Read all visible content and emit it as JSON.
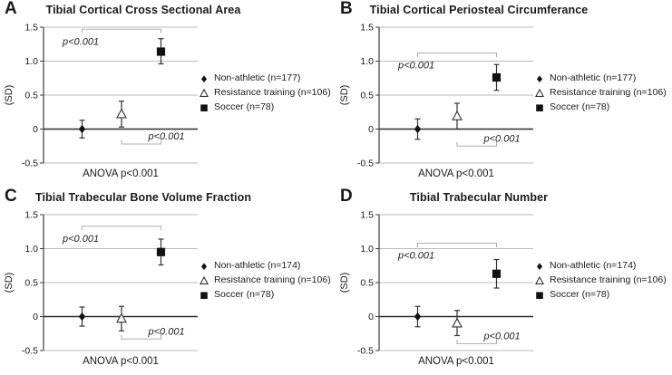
{
  "figure": {
    "ylabel": "(SD)",
    "colors": {
      "background": "#ffffff",
      "grid": "#bababa",
      "zero_line": "#2b2b2b",
      "axis": "#3c3c3c",
      "error_bar": "#333333",
      "bracket": "#b0b0b0",
      "marker": "#111111",
      "text": "#1a1a1a"
    }
  },
  "chart_data": [
    {
      "type": "scatter",
      "panel": "A",
      "title": "Tibial Cortical Cross Sectional Area",
      "ylabel": "(SD)",
      "xlabel": "",
      "anova": "ANOVA p<0.001",
      "ylim": [
        -0.5,
        1.5
      ],
      "grid": true,
      "legend_position": "right",
      "yticks": [
        {
          "value": 1.5,
          "label": "1.5"
        },
        {
          "value": 1.0,
          "label": "1.0"
        },
        {
          "value": 0.5,
          "label": "0.5"
        },
        {
          "value": 0.0,
          "label": "0"
        },
        {
          "value": -0.5,
          "label": "-0.5"
        }
      ],
      "groups": [
        {
          "name": "Non-athletic (n=177)",
          "marker": "diamond",
          "filled": true,
          "mean": 0.0,
          "err_lo": -0.13,
          "err_hi": 0.13
        },
        {
          "name": "Resistance training (n=106)",
          "marker": "triangle-open",
          "filled": false,
          "mean": 0.22,
          "err_lo": 0.03,
          "err_hi": 0.41
        },
        {
          "name": "Soccer (n=78)",
          "marker": "square",
          "filled": true,
          "mean": 1.14,
          "err_lo": 0.96,
          "err_hi": 1.33
        }
      ],
      "comparisons": [
        {
          "from": 0,
          "to": 2,
          "bracket_y": 1.47,
          "label": "p<0.001",
          "label_pos": "below-left",
          "tick_dir": "down"
        },
        {
          "from": 1,
          "to": 2,
          "bracket_y": -0.22,
          "label": "p<0.001",
          "label_pos": "above-right",
          "tick_dir": "up"
        }
      ]
    },
    {
      "type": "scatter",
      "panel": "B",
      "title": "Tibial Cortical Periosteal Circumferance",
      "ylabel": "(SD)",
      "xlabel": "",
      "anova": "ANOVA p<0.001",
      "ylim": [
        -0.5,
        1.5
      ],
      "grid": true,
      "legend_position": "right",
      "yticks": [
        {
          "value": 1.5,
          "label": "1.5"
        },
        {
          "value": 1.0,
          "label": "1.0"
        },
        {
          "value": 0.5,
          "label": "0.5"
        },
        {
          "value": 0.0,
          "label": "0"
        },
        {
          "value": -0.5,
          "label": "-0.5"
        }
      ],
      "groups": [
        {
          "name": "Non-athletic (n=177)",
          "marker": "diamond",
          "filled": true,
          "mean": 0.0,
          "err_lo": -0.15,
          "err_hi": 0.15
        },
        {
          "name": "Resistance training (n=106)",
          "marker": "triangle-open",
          "filled": false,
          "mean": 0.19,
          "err_lo": 0.0,
          "err_hi": 0.38
        },
        {
          "name": "Soccer (n=78)",
          "marker": "square",
          "filled": true,
          "mean": 0.76,
          "err_lo": 0.57,
          "err_hi": 0.95
        }
      ],
      "comparisons": [
        {
          "from": 0,
          "to": 2,
          "bracket_y": 1.12,
          "label": "p<0.001",
          "label_pos": "below-left",
          "tick_dir": "down"
        },
        {
          "from": 1,
          "to": 2,
          "bracket_y": -0.25,
          "label": "p<0.001",
          "label_pos": "above-right",
          "tick_dir": "up"
        }
      ]
    },
    {
      "type": "scatter",
      "panel": "C",
      "title": "Tibial Trabecular Bone Volume Fraction",
      "ylabel": "(SD)",
      "xlabel": "",
      "anova": "ANOVA p<0.001",
      "ylim": [
        -0.5,
        1.5
      ],
      "grid": true,
      "legend_position": "right",
      "yticks": [
        {
          "value": 1.5,
          "label": "1.5"
        },
        {
          "value": 1.0,
          "label": "1.0"
        },
        {
          "value": 0.5,
          "label": "0.5"
        },
        {
          "value": 0.0,
          "label": "0"
        },
        {
          "value": -0.5,
          "label": "-0.5"
        }
      ],
      "groups": [
        {
          "name": "Non-athletic (n=174)",
          "marker": "diamond",
          "filled": true,
          "mean": 0.0,
          "err_lo": -0.14,
          "err_hi": 0.14
        },
        {
          "name": "Resistance training (n=106)",
          "marker": "triangle-open",
          "filled": false,
          "mean": -0.03,
          "err_lo": -0.21,
          "err_hi": 0.15
        },
        {
          "name": "Soccer (n=78)",
          "marker": "square",
          "filled": true,
          "mean": 0.95,
          "err_lo": 0.76,
          "err_hi": 1.14
        }
      ],
      "comparisons": [
        {
          "from": 0,
          "to": 2,
          "bracket_y": 1.33,
          "label": "p<0.001",
          "label_pos": "below-left",
          "tick_dir": "down"
        },
        {
          "from": 1,
          "to": 2,
          "bracket_y": -0.33,
          "label": "p<0.001",
          "label_pos": "above-right",
          "tick_dir": "up"
        }
      ]
    },
    {
      "type": "scatter",
      "panel": "D",
      "title": "Tibial Trabecular Number",
      "ylabel": "(SD)",
      "xlabel": "",
      "anova": "ANOVA p<0.001",
      "ylim": [
        -0.5,
        1.5
      ],
      "grid": true,
      "legend_position": "right",
      "yticks": [
        {
          "value": 1.5,
          "label": "1.5"
        },
        {
          "value": 1.0,
          "label": "1.0"
        },
        {
          "value": 0.5,
          "label": "0.5"
        },
        {
          "value": 0.0,
          "label": "0"
        },
        {
          "value": -0.5,
          "label": "-0.5"
        }
      ],
      "groups": [
        {
          "name": "Non-athletic (n=174)",
          "marker": "diamond",
          "filled": true,
          "mean": 0.0,
          "err_lo": -0.15,
          "err_hi": 0.15
        },
        {
          "name": "Resistance training (n=106)",
          "marker": "triangle-open",
          "filled": false,
          "mean": -0.1,
          "err_lo": -0.28,
          "err_hi": 0.09
        },
        {
          "name": "Soccer (n=78)",
          "marker": "square",
          "filled": true,
          "mean": 0.63,
          "err_lo": 0.42,
          "err_hi": 0.84
        }
      ],
      "comparisons": [
        {
          "from": 0,
          "to": 2,
          "bracket_y": 1.08,
          "label": "p<0.001",
          "label_pos": "below-left",
          "tick_dir": "down"
        },
        {
          "from": 1,
          "to": 2,
          "bracket_y": -0.4,
          "label": "p<0.001",
          "label_pos": "above-right",
          "tick_dir": "up"
        }
      ]
    }
  ]
}
